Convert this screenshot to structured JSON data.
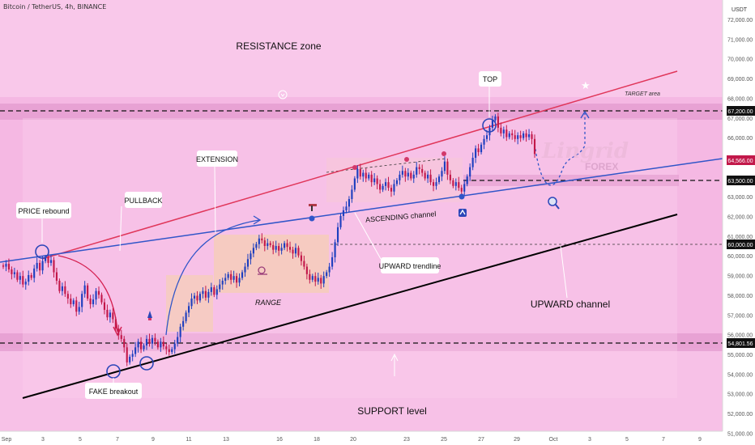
{
  "header": {
    "symbol_line": "Bitcoin / TetherUS, 4h, BINANCE"
  },
  "axis": {
    "currency": "USDT",
    "price_ticks": [
      "72,000.00",
      "71,000.00",
      "70,000.00",
      "69,000.00",
      "68,000.00",
      "67,000.00",
      "66,000.00",
      "65,000.00",
      "64,000.00",
      "63,000.00",
      "62,000.00",
      "61,000.00",
      "60,000.00",
      "59,000.00",
      "58,000.00",
      "57,000.00",
      "56,000.00",
      "55,000.00",
      "54,000.00",
      "53,000.00",
      "52,000.00",
      "51,000.00"
    ],
    "time_ticks": [
      "Sep",
      "3",
      "5",
      "7",
      "9",
      "11",
      "13",
      "16",
      "18",
      "20",
      "23",
      "25",
      "27",
      "29",
      "Oct",
      "3",
      "5",
      "7",
      "9"
    ]
  },
  "price_labels": {
    "p67200": "67,200.00",
    "p64566": "64,566.00",
    "p63500": "63,500.00",
    "p60000": "60,000.00",
    "p54801": "54,801.56"
  },
  "annotations": {
    "resistance": "RESISTANCE zone",
    "support": "SUPPORT level",
    "price_rebound": "PRICE rebound",
    "pullback": "PULLBACK",
    "extension": "EXTENSION",
    "range": "RANGE",
    "fake_breakout": "FAKE breakout",
    "ascending_channel": "ASCENDING channel",
    "upward_trendline": "UPWARD trendline",
    "upward_channel": "UPWARD channel",
    "top": "TOP",
    "target_area": "TARGET area",
    "brand": "Lingrid",
    "brand_sub": "FOREX"
  },
  "colors": {
    "pink_bg": "#f5b8e3",
    "zone": "#e7a0d2",
    "bull": "#1e3fbf",
    "bear": "#c2184a",
    "resistance_line": "#e0365a",
    "trend_line": "#3055c8",
    "channel_line": "#000000",
    "range_box": "#f4c9b8"
  },
  "chart_data": {
    "type": "candlestick",
    "symbol": "Bitcoin / TetherUS",
    "interval": "4h",
    "exchange": "BINANCE",
    "y_unit": "USDT",
    "ylim": [
      50200,
      72800
    ],
    "x_range": [
      "Sep 1",
      "Oct 9"
    ],
    "levels": [
      {
        "label": "67,200.00",
        "value": 67200
      },
      {
        "label": "64,566.00",
        "value": 64566
      },
      {
        "label": "63,500.00",
        "value": 63500
      },
      {
        "label": "60,000.00",
        "value": 60000
      },
      {
        "label": "54,801.56",
        "value": 54801.56
      }
    ],
    "zones": [
      {
        "name": "RESISTANCE zone",
        "from": 66800,
        "to": 67600
      },
      {
        "name": "SUPPORT level",
        "from": 54300,
        "to": 55300
      }
    ],
    "trendlines": [
      {
        "name": "resistance",
        "from": [
          "Sep 4",
          58800
        ],
        "to": [
          "Oct 7",
          69400
        ]
      },
      {
        "name": "UPWARD trendline",
        "from": [
          "Sep 1",
          59000
        ],
        "to": [
          "Oct 9",
          64700
        ]
      },
      {
        "name": "UPWARD channel",
        "from": [
          "Sep 1",
          51800
        ],
        "to": [
          "Oct 7",
          61900
        ]
      }
    ],
    "closes": [
      58900,
      59050,
      58750,
      58500,
      58600,
      58200,
      58400,
      57950,
      58100,
      58450,
      58300,
      58800,
      59100,
      58700,
      59200,
      59400,
      59100,
      59250,
      58600,
      58150,
      57600,
      57850,
      57450,
      57200,
      56900,
      57100,
      56500,
      56750,
      57450,
      57900,
      57200,
      56900,
      57150,
      57600,
      57400,
      57000,
      56600,
      56200,
      56450,
      56100,
      55600,
      55250,
      55050,
      54600,
      53800,
      54100,
      54250,
      54600,
      54900,
      54500,
      54700,
      55050,
      54800,
      55100,
      54900,
      54600,
      54900,
      54650,
      54500,
      54350,
      54500,
      54800,
      55150,
      55700,
      56000,
      56450,
      56800,
      57200,
      57350,
      57100,
      57450,
      57600,
      57250,
      57550,
      57800,
      57400,
      57700,
      57950,
      58150,
      58300,
      58500,
      58200,
      58400,
      58050,
      58300,
      58600,
      58900,
      59300,
      59600,
      59900,
      60100,
      60400,
      60300,
      60000,
      60150,
      60050,
      59800,
      60000,
      59750,
      59900,
      60150,
      59950,
      59800,
      59600,
      59900,
      59500,
      59200,
      58900,
      58500,
      58200,
      58400,
      58100,
      58300,
      58000,
      58400,
      58600,
      58900,
      59400,
      60200,
      61000,
      61600,
      61900,
      62100,
      62500,
      63000,
      63600,
      64100,
      63700,
      63900,
      63600,
      63800,
      63400,
      63600,
      63300,
      63000,
      63200,
      63400,
      63100,
      62900,
      63300,
      63500,
      63800,
      64000,
      63700,
      63900,
      63600,
      63800,
      64200,
      64100,
      63900,
      63600,
      63800,
      63400,
      63200,
      63400,
      63700,
      64000,
      64500,
      63800,
      63500,
      63200,
      63400,
      63100,
      62900,
      63300,
      63700,
      64200,
      64700,
      65200,
      65000,
      65400,
      65700,
      65900,
      66300,
      66700,
      66900,
      66300,
      66000,
      66200,
      65800,
      66000,
      65900,
      65700,
      65900,
      65750,
      66000,
      65800,
      65950,
      65700,
      64900
    ]
  }
}
